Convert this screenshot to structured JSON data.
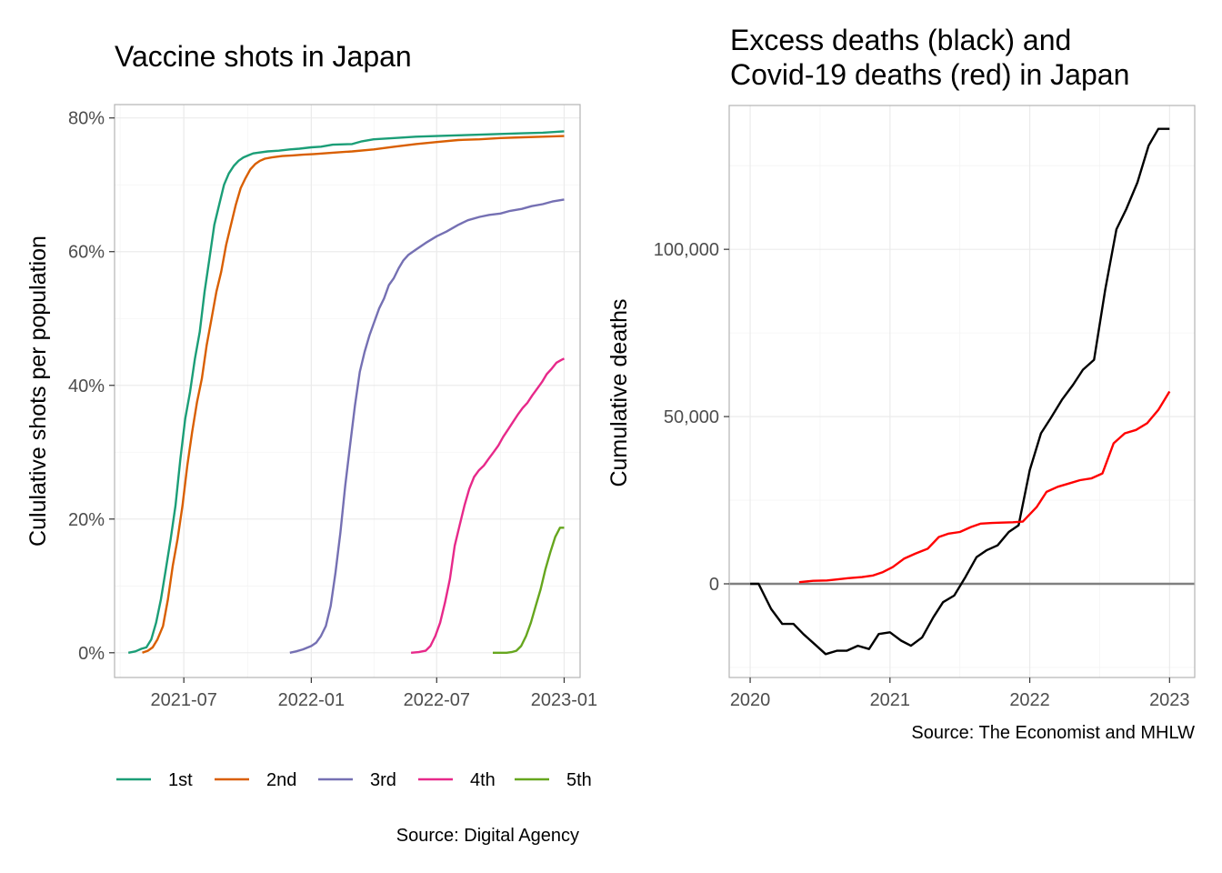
{
  "chart_data": [
    {
      "type": "line",
      "title": "Vaccine shots in Japan",
      "xlabel": "",
      "ylabel": "Cululative shots per population",
      "caption": "Source: Digital Agency",
      "x_ticks": [
        "2021-07",
        "2022-01",
        "2022-07",
        "2023-01"
      ],
      "y_ticks": [
        "0%",
        "20%",
        "40%",
        "60%",
        "80%"
      ],
      "xlim": [
        "2021-03-23",
        "2023-01-24"
      ],
      "ylim": [
        -3.7,
        82
      ],
      "grid": true,
      "legend_position": "bottom",
      "series": [
        {
          "name": "1st",
          "color": "#1b9e77",
          "x": [
            "2021-04-12",
            "2021-04-22",
            "2021-05-01",
            "2021-05-08",
            "2021-05-15",
            "2021-05-22",
            "2021-05-29",
            "2021-06-05",
            "2021-06-12",
            "2021-06-19",
            "2021-06-26",
            "2021-07-03",
            "2021-07-10",
            "2021-07-17",
            "2021-07-24",
            "2021-07-31",
            "2021-08-07",
            "2021-08-14",
            "2021-08-21",
            "2021-08-28",
            "2021-09-04",
            "2021-09-11",
            "2021-09-18",
            "2021-09-25",
            "2021-10-02",
            "2021-10-09",
            "2021-10-16",
            "2021-10-30",
            "2021-11-15",
            "2021-12-01",
            "2021-12-15",
            "2022-01-01",
            "2022-01-15",
            "2022-02-01",
            "2022-03-01",
            "2022-03-15",
            "2022-04-01",
            "2022-05-01",
            "2022-06-01",
            "2022-07-01",
            "2022-08-01",
            "2022-09-01",
            "2022-10-01",
            "2022-11-01",
            "2022-12-01",
            "2023-01-01"
          ],
          "values": [
            0,
            0.2,
            0.6,
            0.8,
            2,
            4.5,
            8,
            12.5,
            17,
            22,
            29,
            35,
            39,
            44,
            48,
            54,
            59,
            64,
            67,
            70,
            71.7,
            72.8,
            73.6,
            74.1,
            74.4,
            74.7,
            74.8,
            75,
            75.1,
            75.3,
            75.4,
            75.6,
            75.7,
            76,
            76.1,
            76.5,
            76.8,
            77,
            77.2,
            77.3,
            77.4,
            77.5,
            77.6,
            77.7,
            77.8,
            78
          ]
        },
        {
          "name": "2nd",
          "color": "#d95f02",
          "x": [
            "2021-05-02",
            "2021-05-10",
            "2021-05-17",
            "2021-05-24",
            "2021-06-01",
            "2021-06-08",
            "2021-06-15",
            "2021-06-22",
            "2021-06-29",
            "2021-07-06",
            "2021-07-13",
            "2021-07-20",
            "2021-07-27",
            "2021-08-03",
            "2021-08-10",
            "2021-08-17",
            "2021-08-24",
            "2021-08-31",
            "2021-09-07",
            "2021-09-14",
            "2021-09-21",
            "2021-09-28",
            "2021-10-05",
            "2021-10-12",
            "2021-10-19",
            "2021-10-26",
            "2021-11-05",
            "2021-11-20",
            "2021-12-05",
            "2021-12-20",
            "2022-01-05",
            "2022-02-01",
            "2022-03-01",
            "2022-04-01",
            "2022-05-01",
            "2022-06-01",
            "2022-07-01",
            "2022-08-01",
            "2022-09-01",
            "2022-10-01",
            "2022-11-01",
            "2022-12-01",
            "2023-01-01"
          ],
          "values": [
            0,
            0.3,
            0.8,
            2,
            4,
            8,
            13,
            17,
            22,
            28,
            33,
            37.5,
            41,
            46,
            50,
            54,
            57,
            61,
            64,
            67,
            69.5,
            71,
            72.3,
            73.1,
            73.6,
            73.9,
            74.1,
            74.3,
            74.4,
            74.5,
            74.6,
            74.8,
            75,
            75.3,
            75.7,
            76.1,
            76.4,
            76.7,
            76.8,
            77,
            77.1,
            77.2,
            77.3
          ]
        },
        {
          "name": "3rd",
          "color": "#7570b3",
          "x": [
            "2021-12-01",
            "2021-12-10",
            "2021-12-20",
            "2022-01-01",
            "2022-01-08",
            "2022-01-15",
            "2022-01-22",
            "2022-01-29",
            "2022-02-05",
            "2022-02-12",
            "2022-02-19",
            "2022-02-26",
            "2022-03-05",
            "2022-03-12",
            "2022-03-19",
            "2022-03-26",
            "2022-04-02",
            "2022-04-09",
            "2022-04-16",
            "2022-04-23",
            "2022-04-30",
            "2022-05-07",
            "2022-05-14",
            "2022-05-21",
            "2022-06-01",
            "2022-06-15",
            "2022-07-01",
            "2022-07-15",
            "2022-08-01",
            "2022-08-15",
            "2022-09-01",
            "2022-09-15",
            "2022-10-01",
            "2022-10-15",
            "2022-11-01",
            "2022-11-15",
            "2022-12-01",
            "2022-12-15",
            "2023-01-01"
          ],
          "values": [
            0,
            0.2,
            0.5,
            1,
            1.5,
            2.5,
            4,
            7,
            12,
            18,
            25,
            31,
            37,
            42,
            45,
            47.5,
            49.5,
            51.5,
            53,
            55,
            56,
            57.5,
            58.7,
            59.5,
            60.3,
            61.3,
            62.3,
            63,
            64,
            64.7,
            65.2,
            65.5,
            65.7,
            66.1,
            66.4,
            66.8,
            67.1,
            67.5,
            67.8
          ]
        },
        {
          "name": "4th",
          "color": "#e7298a",
          "x": [
            "2022-05-25",
            "2022-06-05",
            "2022-06-15",
            "2022-06-22",
            "2022-06-29",
            "2022-07-06",
            "2022-07-13",
            "2022-07-20",
            "2022-07-27",
            "2022-08-03",
            "2022-08-10",
            "2022-08-17",
            "2022-08-24",
            "2022-08-31",
            "2022-09-07",
            "2022-09-14",
            "2022-09-21",
            "2022-09-28",
            "2022-10-05",
            "2022-10-12",
            "2022-10-19",
            "2022-10-26",
            "2022-11-02",
            "2022-11-09",
            "2022-11-16",
            "2022-11-23",
            "2022-11-30",
            "2022-12-07",
            "2022-12-14",
            "2022-12-21",
            "2022-12-28",
            "2023-01-01"
          ],
          "values": [
            0,
            0.1,
            0.3,
            1,
            2.5,
            4.5,
            7.5,
            11,
            16,
            19,
            22,
            24.5,
            26.3,
            27.3,
            28,
            29,
            30,
            31,
            32.3,
            33.4,
            34.5,
            35.6,
            36.6,
            37.4,
            38.5,
            39.5,
            40.5,
            41.7,
            42.5,
            43.4,
            43.8,
            44
          ]
        },
        {
          "name": "5th",
          "color": "#66a61e",
          "x": [
            "2022-09-20",
            "2022-10-01",
            "2022-10-10",
            "2022-10-17",
            "2022-10-24",
            "2022-10-31",
            "2022-11-07",
            "2022-11-14",
            "2022-11-21",
            "2022-11-28",
            "2022-12-05",
            "2022-12-12",
            "2022-12-19",
            "2022-12-26",
            "2023-01-01"
          ],
          "values": [
            0,
            0,
            0,
            0.1,
            0.3,
            1,
            2.5,
            4.5,
            7,
            9.5,
            12.5,
            15,
            17.3,
            18.7,
            18.7
          ]
        }
      ]
    },
    {
      "type": "line",
      "title": "Excess deaths (black) and Covid-19 deaths (red) in Japan",
      "title_lines": [
        "Excess deaths (black) and",
        "Covid-19 deaths (red) in Japan"
      ],
      "xlabel": "",
      "ylabel": "Cumulative deaths",
      "caption": "Source: The Economist and MHLW",
      "x_ticks": [
        "2020",
        "2021",
        "2022",
        "2023"
      ],
      "y_ticks": [
        "0",
        "50,000",
        "100,000"
      ],
      "xlim": [
        2019.85,
        2023.18
      ],
      "ylim": [
        -28000,
        143000
      ],
      "zero_line": true,
      "grid": true,
      "series": [
        {
          "name": "",
          "color": "#000000",
          "x": [
            2020.0,
            2020.06,
            2020.15,
            2020.23,
            2020.31,
            2020.38,
            2020.46,
            2020.54,
            2020.62,
            2020.69,
            2020.77,
            2020.85,
            2020.92,
            2021.0,
            2021.08,
            2021.15,
            2021.23,
            2021.31,
            2021.38,
            2021.46,
            2021.54,
            2021.62,
            2021.69,
            2021.77,
            2021.85,
            2021.92,
            2022.0,
            2022.08,
            2022.15,
            2022.23,
            2022.31,
            2022.38,
            2022.46,
            2022.54,
            2022.62,
            2022.69,
            2022.77,
            2022.85,
            2022.92,
            2023.0
          ],
          "values": [
            0,
            0,
            -7500,
            -12000,
            -12000,
            -15000,
            -18000,
            -21000,
            -20000,
            -20000,
            -18500,
            -19500,
            -15000,
            -14500,
            -17000,
            -18500,
            -16000,
            -10000,
            -5500,
            -3500,
            2000,
            8000,
            10000,
            11500,
            15500,
            17500,
            34000,
            45000,
            49500,
            55000,
            59500,
            64000,
            67000,
            88000,
            106000,
            112000,
            120000,
            131000,
            136000,
            136000
          ]
        },
        {
          "name": "",
          "color": "#ff0000",
          "x": [
            2020.35,
            2020.45,
            2020.55,
            2020.62,
            2020.7,
            2020.8,
            2020.88,
            2020.95,
            2021.02,
            2021.1,
            2021.18,
            2021.27,
            2021.35,
            2021.42,
            2021.5,
            2021.58,
            2021.65,
            2021.73,
            2021.8,
            2021.88,
            2021.95,
            2022.05,
            2022.12,
            2022.2,
            2022.28,
            2022.36,
            2022.44,
            2022.52,
            2022.6,
            2022.68,
            2022.76,
            2022.84,
            2022.92,
            2023.0
          ],
          "values": [
            500,
            900,
            1000,
            1300,
            1700,
            2000,
            2500,
            3500,
            5000,
            7500,
            9000,
            10500,
            14000,
            15000,
            15500,
            17000,
            18000,
            18200,
            18300,
            18400,
            18600,
            23000,
            27500,
            29000,
            30000,
            31000,
            31500,
            33000,
            42000,
            45000,
            46000,
            48000,
            52000,
            57500
          ]
        }
      ]
    }
  ]
}
